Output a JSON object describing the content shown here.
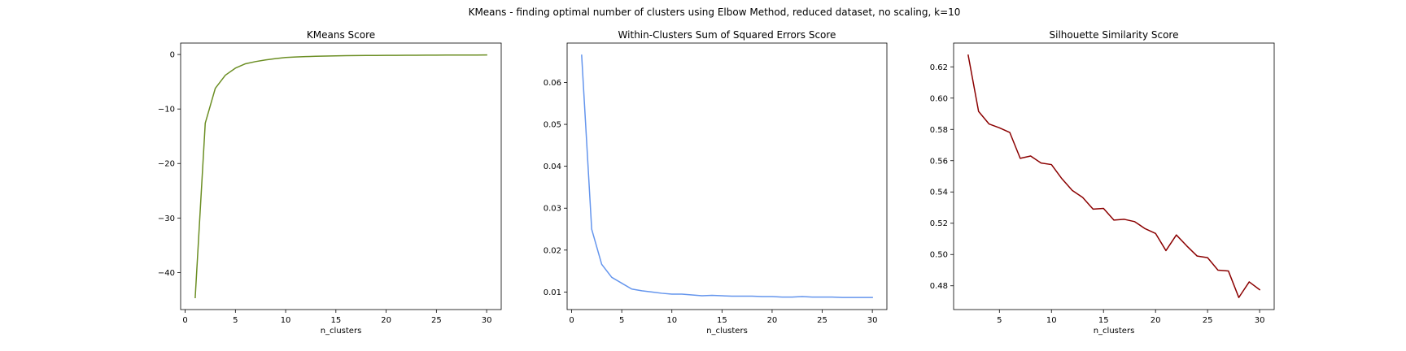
{
  "figure": {
    "suptitle": "KMeans - finding optimal number of clusters using Elbow Method, reduced dataset, no scaling, k=10"
  },
  "chart_data": [
    {
      "type": "line",
      "title": "KMeans Score",
      "xlabel": "n_clusters",
      "ylabel": "",
      "x": [
        1,
        2,
        3,
        4,
        5,
        6,
        7,
        8,
        9,
        10,
        11,
        12,
        13,
        14,
        15,
        16,
        17,
        18,
        19,
        20,
        21,
        22,
        23,
        24,
        25,
        26,
        27,
        28,
        29,
        30
      ],
      "series": [
        {
          "color": "#6b8e23",
          "values": [
            -44.6,
            -12.6,
            -6.2,
            -3.8,
            -2.5,
            -1.7,
            -1.3,
            -1.0,
            -0.75,
            -0.55,
            -0.45,
            -0.38,
            -0.33,
            -0.29,
            -0.25,
            -0.22,
            -0.2,
            -0.18,
            -0.17,
            -0.16,
            -0.15,
            -0.14,
            -0.13,
            -0.12,
            -0.11,
            -0.1,
            -0.1,
            -0.09,
            -0.09,
            -0.08
          ]
        }
      ],
      "xlim": [
        -0.45,
        31.45
      ],
      "ylim": [
        -46.8,
        2.1
      ],
      "xticks": [
        0,
        5,
        10,
        15,
        20,
        25,
        30
      ],
      "yticks": [
        0,
        -10,
        -20,
        -30,
        -40
      ],
      "xtick_labels": [
        "0",
        "5",
        "10",
        "15",
        "20",
        "25",
        "30"
      ],
      "ytick_labels": [
        "0",
        "−10",
        "−20",
        "−30",
        "−40"
      ],
      "grid": false,
      "legend": false
    },
    {
      "type": "line",
      "title": "Within-Clusters Sum of Squared Errors Score",
      "xlabel": "n_clusters",
      "ylabel": "",
      "x": [
        1,
        2,
        3,
        4,
        5,
        6,
        7,
        8,
        9,
        10,
        11,
        12,
        13,
        14,
        15,
        16,
        17,
        18,
        19,
        20,
        21,
        22,
        23,
        24,
        25,
        26,
        27,
        28,
        29,
        30
      ],
      "series": [
        {
          "color": "#6495ed",
          "values": [
            0.0665,
            0.025,
            0.0166,
            0.0135,
            0.0121,
            0.0107,
            0.0103,
            0.01,
            0.0097,
            0.0095,
            0.0095,
            0.0093,
            0.0091,
            0.0092,
            0.0091,
            0.009,
            0.009,
            0.009,
            0.0089,
            0.0089,
            0.0088,
            0.0088,
            0.0089,
            0.0088,
            0.0088,
            0.0088,
            0.0087,
            0.0087,
            0.0087,
            0.0087
          ]
        }
      ],
      "xlim": [
        -0.45,
        31.45
      ],
      "ylim": [
        0.00581,
        0.0694
      ],
      "xticks": [
        0,
        5,
        10,
        15,
        20,
        25,
        30
      ],
      "yticks": [
        0.01,
        0.02,
        0.03,
        0.04,
        0.05,
        0.06
      ],
      "xtick_labels": [
        "0",
        "5",
        "10",
        "15",
        "20",
        "25",
        "30"
      ],
      "ytick_labels": [
        "0.01",
        "0.02",
        "0.03",
        "0.04",
        "0.05",
        "0.06"
      ],
      "grid": false,
      "legend": false
    },
    {
      "type": "line",
      "title": "Silhouette Similarity Score",
      "xlabel": "n_clusters",
      "ylabel": "",
      "x": [
        2,
        3,
        4,
        5,
        6,
        7,
        8,
        9,
        10,
        11,
        12,
        13,
        14,
        15,
        16,
        17,
        18,
        19,
        20,
        21,
        22,
        23,
        24,
        25,
        26,
        27,
        28,
        29,
        30
      ],
      "series": [
        {
          "color": "#8b0000",
          "values": [
            0.6275,
            0.5915,
            0.5835,
            0.581,
            0.578,
            0.5615,
            0.563,
            0.5585,
            0.5575,
            0.5485,
            0.541,
            0.5365,
            0.529,
            0.5295,
            0.522,
            0.5225,
            0.521,
            0.5165,
            0.5135,
            0.5025,
            0.5125,
            0.5055,
            0.499,
            0.498,
            0.49,
            0.4895,
            0.4725,
            0.4825,
            0.4775
          ]
        }
      ],
      "xlim": [
        0.6,
        31.4
      ],
      "ylim": [
        0.4648,
        0.6352
      ],
      "xticks": [
        5,
        10,
        15,
        20,
        25,
        30
      ],
      "yticks": [
        0.48,
        0.5,
        0.52,
        0.54,
        0.56,
        0.58,
        0.6,
        0.62
      ],
      "xtick_labels": [
        "5",
        "10",
        "15",
        "20",
        "25",
        "30"
      ],
      "ytick_labels": [
        "0.48",
        "0.50",
        "0.52",
        "0.54",
        "0.56",
        "0.58",
        "0.60",
        "0.62"
      ],
      "grid": false,
      "legend": false
    }
  ]
}
